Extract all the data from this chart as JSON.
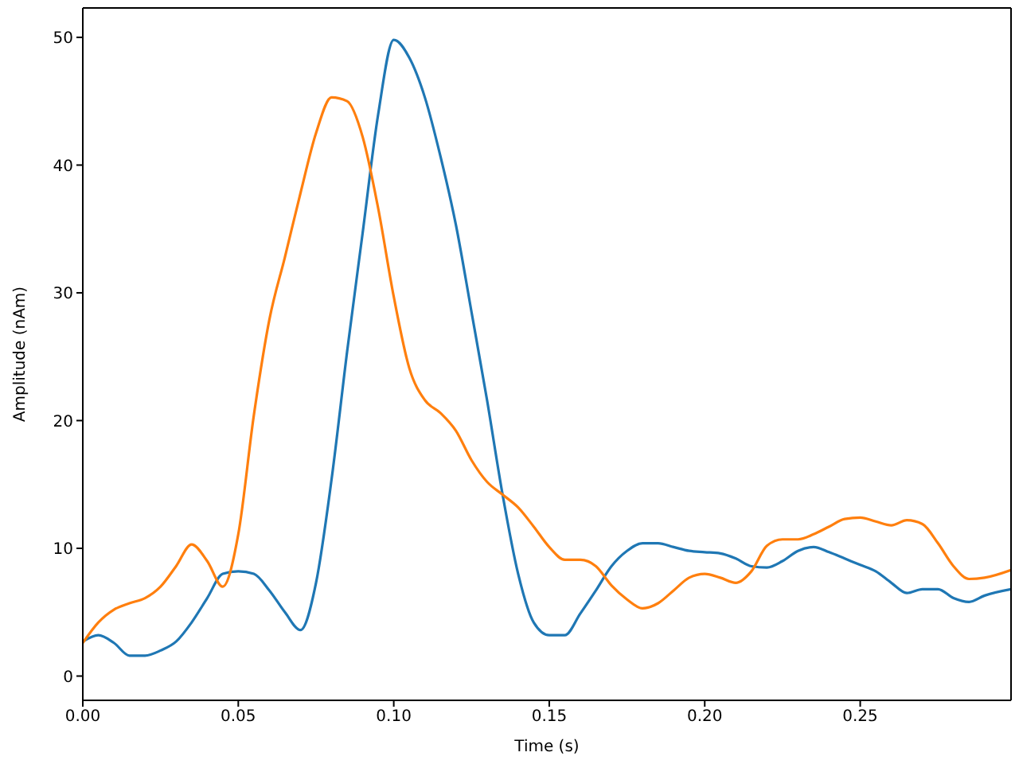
{
  "chart_data": {
    "type": "line",
    "xlabel": "Time (s)",
    "ylabel": "Amplitude (nAm)",
    "x": [
      0,
      0.005,
      0.01,
      0.015,
      0.02,
      0.025,
      0.03,
      0.035,
      0.04,
      0.045,
      0.05,
      0.055,
      0.06,
      0.065,
      0.07,
      0.075,
      0.08,
      0.085,
      0.09,
      0.095,
      0.1,
      0.105,
      0.11,
      0.115,
      0.12,
      0.125,
      0.13,
      0.135,
      0.14,
      0.145,
      0.15,
      0.155,
      0.16,
      0.165,
      0.17,
      0.175,
      0.18,
      0.185,
      0.19,
      0.195,
      0.2,
      0.205,
      0.21,
      0.215,
      0.22,
      0.225,
      0.23,
      0.235,
      0.24,
      0.245,
      0.25,
      0.255,
      0.26,
      0.265,
      0.27,
      0.275,
      0.28,
      0.285,
      0.29,
      0.2985
    ],
    "series": [
      {
        "color": "#1f77b4",
        "values": [
          2.7,
          3.2,
          2.6,
          1.6,
          1.6,
          2.0,
          2.7,
          4.2,
          6.1,
          8.0,
          8.2,
          8.0,
          6.7,
          5.0,
          3.6,
          7.3,
          15.4,
          25.4,
          34.7,
          44.0,
          49.8,
          48.4,
          45.3,
          40.7,
          35.3,
          28.5,
          21.6,
          14.2,
          8.0,
          4.2,
          3.2,
          3.2,
          4.9,
          6.7,
          8.6,
          9.8,
          10.4,
          10.4,
          10.1,
          9.8,
          9.7,
          9.6,
          9.2,
          8.6,
          8.5,
          9.0,
          9.8,
          10.1,
          9.7,
          9.2,
          8.7,
          8.2,
          7.3,
          6.5,
          6.8,
          6.8,
          6.1,
          5.8,
          6.3,
          6.8
        ]
      },
      {
        "color": "#ff7f0e",
        "values": [
          2.6,
          4.2,
          5.2,
          5.7,
          6.1,
          7.0,
          8.6,
          10.3,
          9.0,
          7.0,
          11.1,
          20.4,
          27.9,
          32.8,
          37.8,
          42.5,
          45.3,
          45.0,
          42.2,
          36.6,
          29.7,
          24.1,
          21.6,
          20.6,
          19.2,
          16.9,
          15.2,
          14.2,
          13.2,
          11.7,
          10.1,
          9.1,
          9.1,
          8.6,
          7.1,
          6.0,
          5.3,
          5.7,
          6.7,
          7.7,
          8.0,
          7.7,
          7.3,
          8.2,
          10.2,
          10.7,
          10.7,
          11.1,
          11.7,
          12.3,
          12.4,
          12.1,
          11.8,
          12.2,
          11.9,
          10.4,
          8.6,
          7.6,
          7.7,
          8.3
        ]
      }
    ],
    "xlim": [
      0,
      0.2985
    ],
    "xticks": [
      {
        "value": 0,
        "label": "0.00"
      },
      {
        "value": 0.05,
        "label": "0.05"
      },
      {
        "value": 0.1,
        "label": "0.10"
      },
      {
        "value": 0.15,
        "label": "0.15"
      },
      {
        "value": 0.2,
        "label": "0.20"
      },
      {
        "value": 0.25,
        "label": "0.25"
      }
    ],
    "ylim": [
      -1.9,
      52.3
    ],
    "yticks": [
      0,
      10,
      20,
      30,
      40,
      50
    ],
    "grid": false,
    "legend": false,
    "marker": "none",
    "line_style": "solid"
  }
}
